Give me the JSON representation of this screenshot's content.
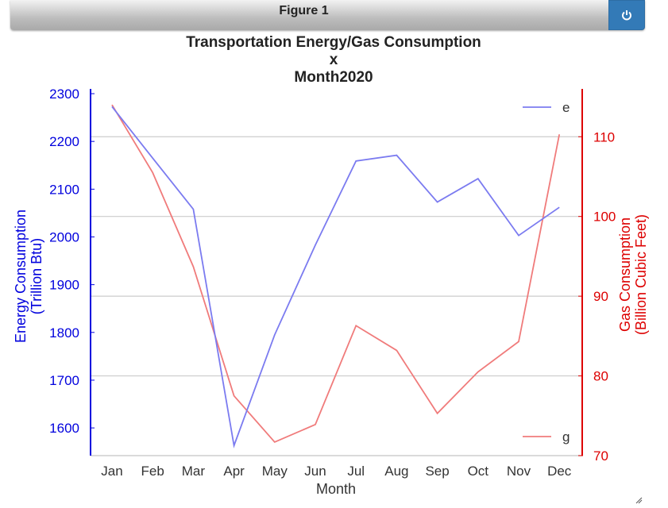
{
  "window": {
    "title": "Figure 1",
    "power_icon": "power-icon"
  },
  "colors": {
    "left_axis": "#0000dd",
    "right_axis": "#dd0000",
    "line_e": "#7b7bf0",
    "line_g": "#f07b7b",
    "grid": "#cccccc"
  },
  "chart_data": {
    "type": "line",
    "title_lines": [
      "Transportation Energy/Gas Consumption",
      "x",
      "Month2020"
    ],
    "xlabel": "Month",
    "ylabel_left": [
      "Energy Consumption",
      "(Trillion Btu)"
    ],
    "ylabel_right": [
      "Gas Consumption",
      "(Billion Cubic Feet)"
    ],
    "categories": [
      "Jan",
      "Feb",
      "Mar",
      "Apr",
      "May",
      "Jun",
      "Jul",
      "Aug",
      "Sep",
      "Oct",
      "Nov",
      "Dec"
    ],
    "ylim_left": [
      1542,
      2310
    ],
    "yticks_left": [
      1600,
      1700,
      1800,
      1900,
      2000,
      2100,
      2200,
      2300
    ],
    "ylim_right": [
      70,
      116
    ],
    "yticks_right": [
      70,
      80,
      90,
      100,
      110
    ],
    "series": [
      {
        "name": "e",
        "axis": "left",
        "values": [
          2273,
          2165,
          2058,
          1563,
          1795,
          1983,
          2159,
          2171,
          2073,
          2122,
          2003,
          2062
        ],
        "legend_position": "top-right"
      },
      {
        "name": "g",
        "axis": "right",
        "values": [
          114,
          105.5,
          93.7,
          77.5,
          71.7,
          73.9,
          86.3,
          83.2,
          75.3,
          80.5,
          84.3,
          110.3
        ],
        "legend_position": "bottom-right"
      }
    ],
    "grid": true
  }
}
